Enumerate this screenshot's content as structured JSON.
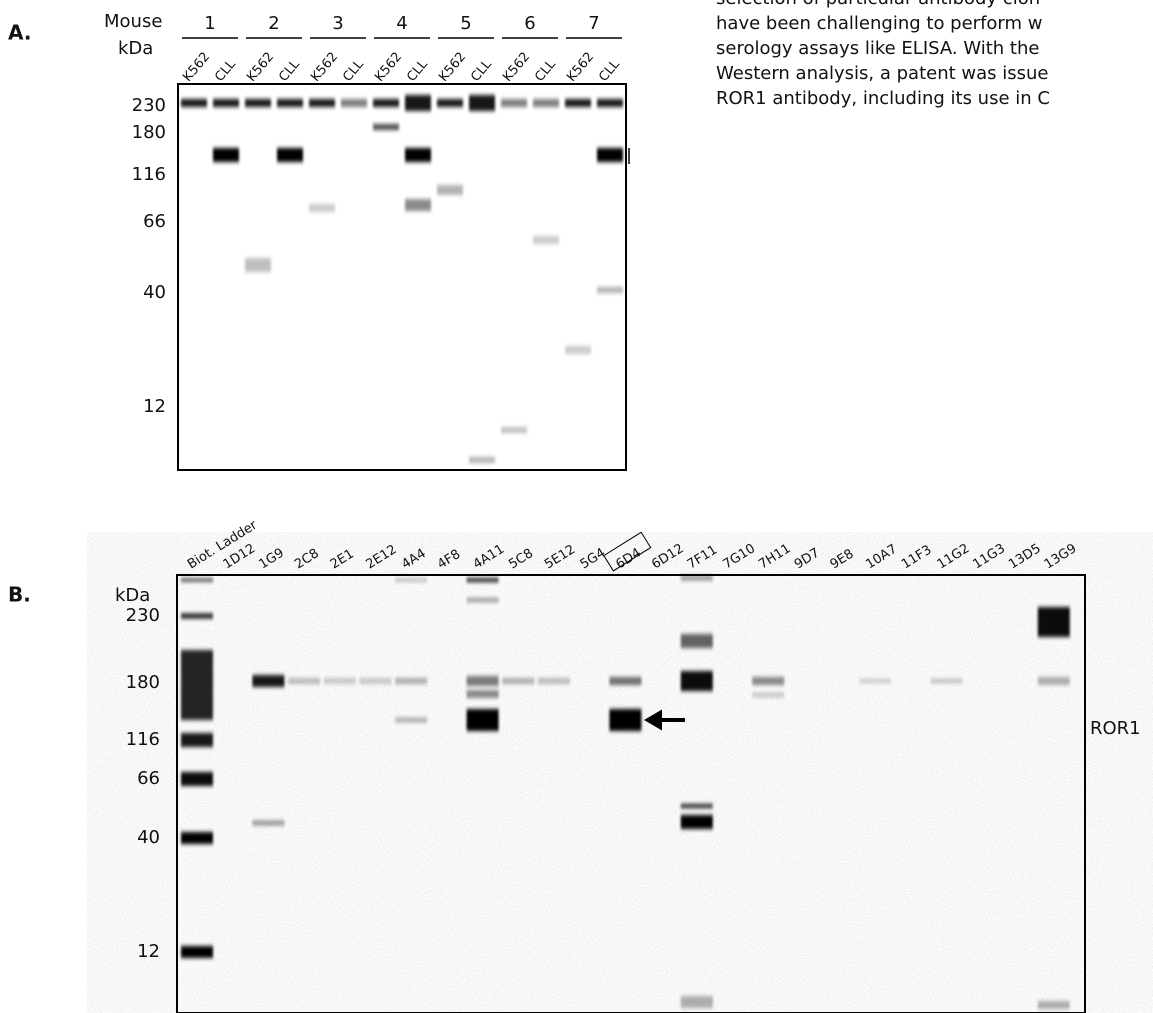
{
  "text": {
    "lines": [
      "selection of particular antibody clon",
      "have been challenging to perform w",
      "serology assays like ELISA. With the",
      "Western analysis, a patent was issue",
      "ROR1 antibody, including its use in C"
    ]
  },
  "panel_a": {
    "label": "A.",
    "mouse_label": "Mouse",
    "mice": [
      "1",
      "2",
      "3",
      "4",
      "5",
      "6",
      "7"
    ],
    "kda_label": "kDa",
    "lanes": [
      "K562",
      "CLL",
      "K562",
      "CLL",
      "K562",
      "CLL",
      "K562",
      "CLL",
      "K562",
      "CLL",
      "K562",
      "CLL",
      "K562",
      "CLL"
    ],
    "markers": [
      "230",
      "180",
      "116",
      "66",
      "40",
      "12"
    ]
  },
  "panel_b": {
    "label": "B.",
    "kda_label": "kDa",
    "lanes": [
      "Biot. Ladder",
      "1D12",
      "1G9",
      "2C8",
      "2E1",
      "2E12",
      "4A4",
      "4F8",
      "4A11",
      "5C8",
      "5E12",
      "5G4",
      "6D4",
      "6D12",
      "7F11",
      "7G10",
      "7H11",
      "9D7",
      "9E8",
      "10A7",
      "11F3",
      "11G2",
      "11G3",
      "13D5",
      "13G9"
    ],
    "markers": [
      "230",
      "180",
      "116",
      "66",
      "40",
      "12"
    ],
    "band_label": "ROR1"
  }
}
